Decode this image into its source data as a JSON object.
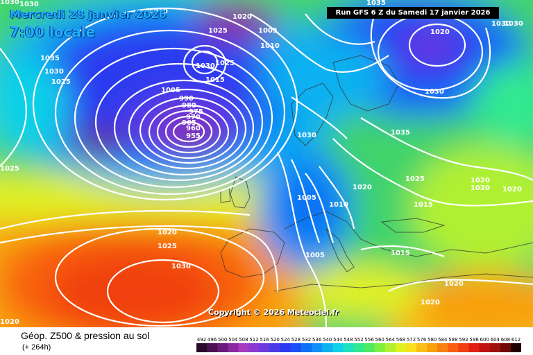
{
  "header": {
    "date": "Mercredi 28 janvier 2026",
    "time": "7:00 locale",
    "run": "Run GFS 6 Z du Samedi 17 janvier 2026"
  },
  "copyright": "Copyright © 2026 Meteociel.fr",
  "footer": {
    "field_title": "Géop. Z500 & pression au sol",
    "lead_time": "(+ 264h)"
  },
  "legend": {
    "values": [
      "492",
      "496",
      "500",
      "504",
      "508",
      "512",
      "516",
      "520",
      "524",
      "528",
      "532",
      "536",
      "540",
      "544",
      "548",
      "552",
      "556",
      "560",
      "564",
      "568",
      "572",
      "576",
      "580",
      "584",
      "588",
      "592",
      "596",
      "600",
      "604",
      "608",
      "612"
    ],
    "colors": [
      "#2a0a2a",
      "#4a1050",
      "#6a1a78",
      "#8a2aa0",
      "#a83ac0",
      "#8a3ad0",
      "#6a3ae0",
      "#4a3ae8",
      "#2a3af0",
      "#1a50f5",
      "#1070f5",
      "#1090f5",
      "#10b0f0",
      "#10d0e8",
      "#20e0c0",
      "#30e890",
      "#50e860",
      "#80f040",
      "#b0f030",
      "#e0f020",
      "#f8e020",
      "#f8c018",
      "#f8a010",
      "#f88010",
      "#f86010",
      "#f04010",
      "#e02010",
      "#c01010",
      "#a01010",
      "#700808",
      "#200000"
    ]
  },
  "isobar_labels": [
    {
      "text": "1030"
    },
    {
      "text": "1010"
    },
    {
      "text": "1020"
    },
    {
      "text": "1005"
    },
    {
      "text": "1010"
    },
    {
      "text": "1025"
    },
    {
      "text": "1020"
    },
    {
      "text": "1035"
    },
    {
      "text": "1030"
    },
    {
      "text": "1030"
    },
    {
      "text": "1025"
    },
    {
      "text": "1035"
    },
    {
      "text": "1030"
    },
    {
      "text": "1030"
    },
    {
      "text": "1030"
    },
    {
      "text": "1025"
    },
    {
      "text": "1015"
    },
    {
      "text": "1005"
    },
    {
      "text": "990"
    },
    {
      "text": "980"
    },
    {
      "text": "975"
    },
    {
      "text": "970"
    },
    {
      "text": "965"
    },
    {
      "text": "960"
    },
    {
      "text": "955"
    },
    {
      "text": "1030"
    },
    {
      "text": "1035"
    },
    {
      "text": "1030"
    },
    {
      "text": "1025"
    },
    {
      "text": "1020"
    },
    {
      "text": "1025"
    },
    {
      "text": "1020"
    },
    {
      "text": "1020"
    },
    {
      "text": "1020"
    },
    {
      "text": "1005"
    },
    {
      "text": "1010"
    },
    {
      "text": "1015"
    },
    {
      "text": "1020"
    },
    {
      "text": "1025"
    },
    {
      "text": "1030"
    },
    {
      "text": "1005"
    },
    {
      "text": "1015"
    },
    {
      "text": "1020"
    },
    {
      "text": "1020"
    },
    {
      "text": "1020"
    }
  ]
}
